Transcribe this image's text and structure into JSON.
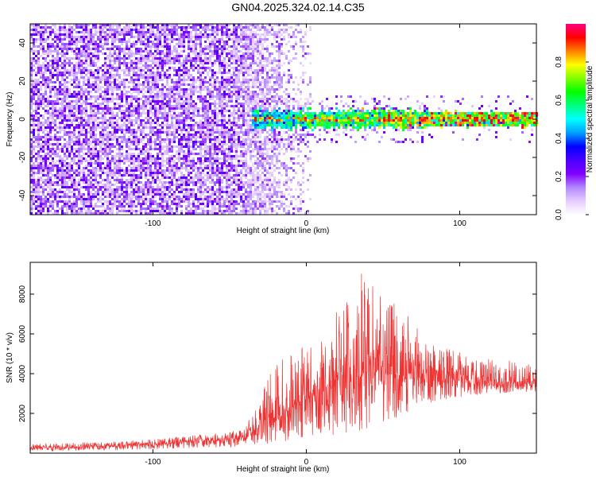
{
  "title": "GN04.2025.324.02.14.C35",
  "colors": {
    "snr_line": "#ee3333",
    "background": "#ffffff",
    "axes": "#000000"
  },
  "chart_data": [
    {
      "type": "heatmap",
      "xlabel": "Height of straight line (km)",
      "ylabel": "Frequency (Hz)",
      "xlim": [
        -180,
        150
      ],
      "ylim": [
        -50,
        50
      ],
      "xticks": [
        -100,
        0,
        100
      ],
      "yticks": [
        -40,
        -20,
        0,
        20,
        40
      ],
      "colorbar": {
        "label": "Normalized spectral amplitude",
        "range": [
          0.0,
          1.0
        ],
        "ticks": [
          "0.0",
          "0.2",
          "0.4",
          "0.6",
          "0.8"
        ],
        "colormap": [
          "#ffffff",
          "#e6ccff",
          "#b388ff",
          "#7f00ff",
          "#4b00ff",
          "#0000ff",
          "#00a0ff",
          "#00ffff",
          "#00ff80",
          "#00ff00",
          "#80ff00",
          "#ffff00",
          "#ff8000",
          "#ff0000",
          "#ff0080"
        ]
      },
      "description_of_field": {
        "noise_region_x": [
          -180,
          -40
        ],
        "noise_fade_x": [
          -40,
          3
        ],
        "signal_band_x": [
          -36,
          150
        ],
        "signal_center_hz": 0,
        "signal_halfwidth_hz": 3,
        "peak_amplitude": 0.95
      }
    },
    {
      "type": "line",
      "xlabel": "Height of straight line (km)",
      "ylabel": "SNR (10 * v/v)",
      "xlim": [
        -180,
        150
      ],
      "ylim": [
        0,
        9600
      ],
      "xticks": [
        -100,
        0,
        100
      ],
      "yticks": [
        2000,
        4000,
        6000,
        8000
      ],
      "series": [
        {
          "envelope_x": [
            -180,
            -120,
            -80,
            -50,
            -40,
            -30,
            -20,
            -10,
            0,
            10,
            20,
            30,
            40,
            50,
            60,
            70,
            80,
            100,
            120,
            150
          ],
          "mean_y": [
            250,
            380,
            550,
            700,
            750,
            1400,
            1800,
            2300,
            2800,
            3200,
            3500,
            3900,
            4100,
            4000,
            3900,
            3800,
            3700,
            3650,
            3600,
            3550
          ],
          "upper_y": [
            450,
            600,
            850,
            1050,
            1200,
            3000,
            4600,
            5200,
            5400,
            6000,
            7400,
            8500,
            9600,
            8200,
            7900,
            6500,
            5600,
            5100,
            4800,
            4500
          ],
          "lower_y": [
            100,
            150,
            250,
            300,
            300,
            400,
            500,
            600,
            700,
            800,
            900,
            1000,
            1200,
            1400,
            1700,
            2100,
            2500,
            2800,
            3000,
            3100
          ]
        }
      ]
    }
  ]
}
